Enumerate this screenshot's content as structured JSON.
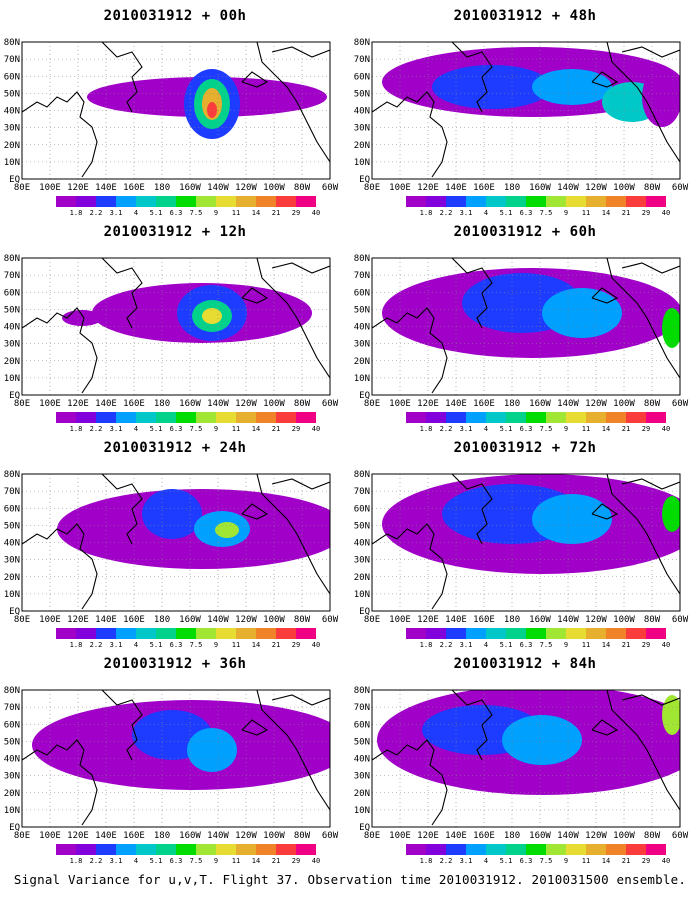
{
  "caption": "Signal Variance for u,v,T. Flight 37. Observation time 2010031912. 2010031500 ensemble.",
  "panels": [
    {
      "title": "2010031912 + 00h"
    },
    {
      "title": "2010031912 + 48h"
    },
    {
      "title": "2010031912 + 12h"
    },
    {
      "title": "2010031912 + 60h"
    },
    {
      "title": "2010031912 + 24h"
    },
    {
      "title": "2010031912 + 72h"
    },
    {
      "title": "2010031912 + 36h"
    },
    {
      "title": "2010031912 + 84h"
    }
  ],
  "x_ticks": [
    "80E",
    "100E",
    "120E",
    "140E",
    "160E",
    "180",
    "160W",
    "140W",
    "120W",
    "100W",
    "80W",
    "60W"
  ],
  "y_ticks": [
    "EQ",
    "10N",
    "20N",
    "30N",
    "40N",
    "50N",
    "60N",
    "70N",
    "80N"
  ],
  "colorbar": {
    "labels": [
      "1.8",
      "2.2",
      "3.1",
      "4",
      "5.1",
      "6.3",
      "7.5",
      "9",
      "11",
      "14",
      "21",
      "29",
      "40"
    ],
    "colors": [
      "#a000c8",
      "#8200dc",
      "#1e3cff",
      "#00a0ff",
      "#00c8c8",
      "#00d28c",
      "#00dc00",
      "#a0e632",
      "#e6dc32",
      "#e6af2d",
      "#f08228",
      "#fa3c3c",
      "#f00082"
    ]
  }
}
